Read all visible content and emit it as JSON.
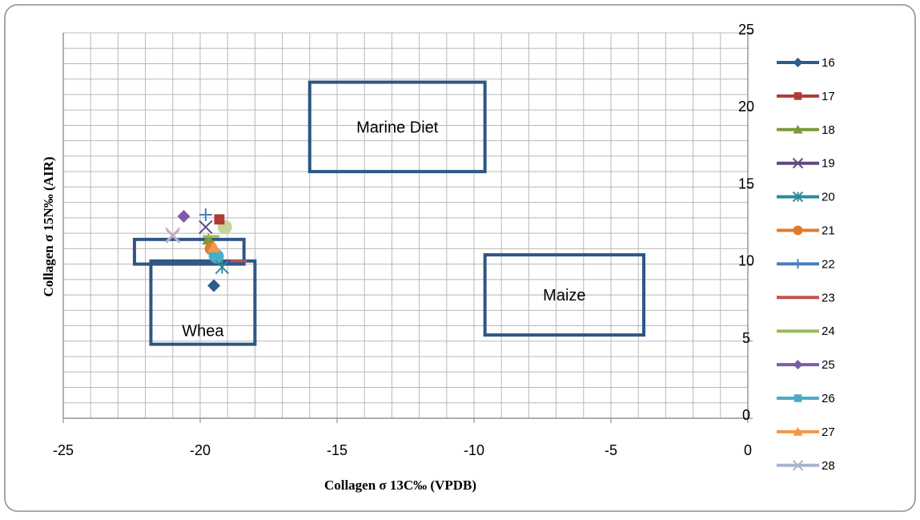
{
  "chart_data": {
    "type": "scatter",
    "xlabel": "Collagen σ 13C‰ (VPDB)",
    "ylabel": "Collagen σ 15N‰ (AIR)",
    "xlim": [
      -25,
      0
    ],
    "ylim": [
      0,
      25
    ],
    "x_ticks": [
      "-25",
      "-20",
      "-15",
      "-10",
      "-5",
      "0"
    ],
    "y_ticks": [
      "0",
      "5",
      "10",
      "15",
      "20",
      "25"
    ],
    "grid": true,
    "legend_position": "right",
    "series": [
      {
        "name": "16",
        "color": "#2e5b8c",
        "marker": "diamond",
        "points": [
          [
            -19.5,
            8.6
          ]
        ]
      },
      {
        "name": "17",
        "color": "#b03a34",
        "marker": "square",
        "points": [
          [
            -19.3,
            12.9
          ]
        ]
      },
      {
        "name": "18",
        "color": "#7a9a3a",
        "marker": "triangle",
        "points": [
          [
            -19.7,
            11.6
          ]
        ]
      },
      {
        "name": "19",
        "color": "#5c4a84",
        "marker": "x",
        "points": [
          [
            -19.8,
            12.4
          ]
        ]
      },
      {
        "name": "20",
        "color": "#2f8a9c",
        "marker": "star",
        "points": [
          [
            -19.2,
            9.8
          ]
        ]
      },
      {
        "name": "21",
        "color": "#e07b2a",
        "marker": "circle",
        "points": [
          [
            -19.6,
            11.0
          ]
        ]
      },
      {
        "name": "22",
        "color": "#4a7ebb",
        "marker": "plus",
        "points": [
          [
            -19.8,
            13.2
          ]
        ]
      },
      {
        "name": "23",
        "color": "#c0504d",
        "marker": "dash",
        "points": [
          [
            -18.6,
            10.2
          ]
        ]
      },
      {
        "name": "24",
        "color": "#9bbb59",
        "marker": "dash",
        "points": [
          [
            -19.6,
            11.8
          ]
        ]
      },
      {
        "name": "25",
        "color": "#7f5ca8",
        "marker": "diamond",
        "points": [
          [
            -20.6,
            13.1
          ]
        ]
      },
      {
        "name": "26",
        "color": "#4bacc6",
        "marker": "square",
        "points": [
          [
            -19.5,
            10.7
          ]
        ]
      },
      {
        "name": "27",
        "color": "#f79646",
        "marker": "triangle",
        "points": [
          [
            -19.5,
            11.1
          ]
        ]
      },
      {
        "name": "28",
        "color": "#a5b5d0",
        "marker": "x",
        "points": [
          [
            -21.0,
            11.8
          ]
        ]
      }
    ],
    "extra_markers": [
      {
        "color": "#e6a8b0",
        "marker": "x",
        "points": [
          [
            -21.0,
            11.9
          ]
        ]
      },
      {
        "color": "#c3d69b",
        "marker": "circle",
        "points": [
          [
            -19.1,
            12.4
          ]
        ]
      },
      {
        "color": "#4bacc6",
        "marker": "circle",
        "points": [
          [
            -19.4,
            10.5
          ]
        ]
      }
    ],
    "regions": [
      {
        "label": "Marine Diet",
        "x": [
          -16.0,
          -9.6
        ],
        "y": [
          16.0,
          21.8
        ]
      },
      {
        "label": "Maize",
        "x": [
          -9.6,
          -3.8
        ],
        "y": [
          5.4,
          10.6
        ]
      },
      {
        "label": "Whea",
        "x": [
          -21.8,
          -18.0
        ],
        "y": [
          4.8,
          10.2
        ]
      },
      {
        "label": "",
        "x": [
          -22.4,
          -18.4
        ],
        "y": [
          10.0,
          11.6
        ]
      }
    ]
  }
}
